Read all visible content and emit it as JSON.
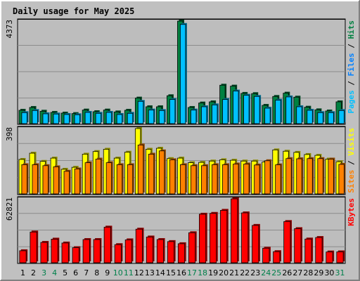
{
  "colors": {
    "background": "#c0c0c0",
    "panel_fill": "#bdbdbd",
    "grid": "#8c8c8c",
    "title": "#0000cc",
    "hits": "#008040",
    "files": "#0080ff",
    "pages": "#00c0ff",
    "visits": "#ffff00",
    "sites": "#ff8000",
    "kbytes": "#ff0000",
    "weekend": "#00804b",
    "weekday": "#000000"
  },
  "chart_data": {
    "type": "bar",
    "title": "Daily usage for May 2025",
    "categories": [
      "1",
      "2",
      "3",
      "4",
      "5",
      "6",
      "7",
      "8",
      "9",
      "10",
      "11",
      "12",
      "13",
      "14",
      "15",
      "16",
      "17",
      "18",
      "19",
      "20",
      "21",
      "22",
      "23",
      "24",
      "25",
      "26",
      "27",
      "28",
      "29",
      "30",
      "31"
    ],
    "weekend_days": [
      "3",
      "4",
      "10",
      "11",
      "17",
      "18",
      "24",
      "25",
      "31"
    ],
    "panels": [
      {
        "max_label": "4373",
        "ymax": 4373,
        "legend": [
          {
            "text": "Pages",
            "color": "#00c0ff"
          },
          {
            "text": " / ",
            "color": "#000000"
          },
          {
            "text": "Files",
            "color": "#0080ff"
          },
          {
            "text": " / ",
            "color": "#000000"
          },
          {
            "text": "Hits",
            "color": "#008040"
          }
        ],
        "series": [
          {
            "key": "hits",
            "color": "#008040",
            "values": [
              570,
              690,
              530,
              480,
              450,
              430,
              580,
              510,
              580,
              500,
              570,
              1090,
              720,
              720,
              1190,
              4373,
              690,
              880,
              930,
              1640,
              1600,
              1290,
              1280,
              780,
              1160,
              1300,
              1130,
              700,
              590,
              540,
              930
            ]
          },
          {
            "key": "pages",
            "color": "#00c0ff",
            "values": [
              470,
              560,
              420,
              410,
              390,
              380,
              480,
              440,
              480,
              390,
              440,
              950,
              580,
              560,
              1030,
              4230,
              580,
              720,
              800,
              1030,
              1390,
              1210,
              1160,
              660,
              1000,
              1140,
              720,
              570,
              470,
              470,
              560
            ]
          }
        ]
      },
      {
        "max_label": "398",
        "ymax": 398,
        "legend": [
          {
            "text": "Sites",
            "color": "#ff8000"
          },
          {
            "text": " / ",
            "color": "#000000"
          },
          {
            "text": "Visits",
            "color": "#ffff00"
          }
        ],
        "series": [
          {
            "key": "visits",
            "color": "#ffff00",
            "values": [
              210,
              248,
              198,
              218,
              150,
              162,
              242,
              258,
              272,
              218,
              254,
              398,
              272,
              278,
              215,
              218,
              190,
              192,
              200,
              208,
              205,
              200,
              200,
              194,
              268,
              260,
              253,
              240,
              235,
              212,
              196
            ]
          },
          {
            "key": "sites",
            "color": "#ff8000",
            "values": [
              178,
              178,
              172,
              165,
              138,
              152,
              190,
              212,
              190,
              178,
              178,
              298,
              242,
              262,
              208,
              178,
              172,
              172,
              178,
              178,
              182,
              182,
              176,
              202,
              177,
              215,
              214,
              215,
              215,
              212,
              180
            ]
          }
        ]
      },
      {
        "max_label": "62821",
        "ymax": 62821,
        "legend": [
          {
            "text": "KBytes",
            "color": "#ff0000"
          }
        ],
        "series": [
          {
            "key": "kbytes",
            "color": "#ff0000",
            "values": [
              11800,
              30200,
              20000,
              23200,
              19400,
              14800,
              22800,
              22800,
              35000,
              17800,
              22500,
              33000,
              25300,
              22800,
              20800,
              18700,
              29500,
              47700,
              48500,
              51500,
              62821,
              49000,
              36700,
              14300,
              10900,
              40500,
              33500,
              23300,
              24800,
              10600,
              10700
            ]
          }
        ]
      }
    ]
  }
}
